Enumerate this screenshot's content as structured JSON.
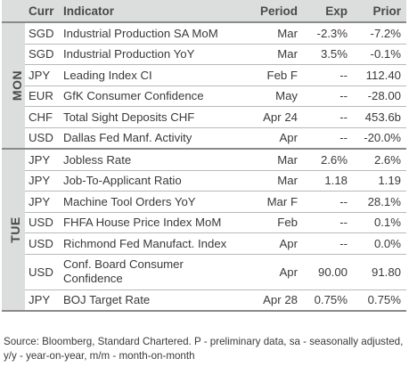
{
  "header": {
    "curr": "Curr",
    "indicator": "Indicator",
    "period": "Period",
    "exp": "Exp",
    "prior": "Prior"
  },
  "groups": [
    {
      "day": "MON",
      "rows": [
        {
          "curr": "SGD",
          "indicator": "Industrial Production SA MoM",
          "period": "Mar",
          "exp": "-2.3%",
          "prior": "-7.2%"
        },
        {
          "curr": "SGD",
          "indicator": "Industrial Production YoY",
          "period": "Mar",
          "exp": "3.5%",
          "prior": "-0.1%"
        },
        {
          "curr": "JPY",
          "indicator": "Leading Index CI",
          "period": "Feb F",
          "exp": "--",
          "prior": "112.40"
        },
        {
          "curr": "EUR",
          "indicator": "GfK Consumer Confidence",
          "period": "May",
          "exp": "--",
          "prior": "-28.00"
        },
        {
          "curr": "CHF",
          "indicator": "Total Sight Deposits CHF",
          "period": "Apr 24",
          "exp": "--",
          "prior": "453.6b"
        },
        {
          "curr": "USD",
          "indicator": "Dallas Fed Manf. Activity",
          "period": "Apr",
          "exp": "--",
          "prior": "-20.0%"
        }
      ]
    },
    {
      "day": "TUE",
      "rows": [
        {
          "curr": "JPY",
          "indicator": "Jobless Rate",
          "period": "Mar",
          "exp": "2.6%",
          "prior": "2.6%"
        },
        {
          "curr": "JPY",
          "indicator": "Job-To-Applicant Ratio",
          "period": "Mar",
          "exp": "1.18",
          "prior": "1.19"
        },
        {
          "curr": "JPY",
          "indicator": "Machine Tool Orders YoY",
          "period": "Mar F",
          "exp": "--",
          "prior": "28.1%"
        },
        {
          "curr": "USD",
          "indicator": "FHFA House Price Index MoM",
          "period": "Feb",
          "exp": "--",
          "prior": "0.1%"
        },
        {
          "curr": "USD",
          "indicator": "Richmond Fed Manufact. Index",
          "period": "Apr",
          "exp": "--",
          "prior": "0.0%"
        },
        {
          "curr": "USD",
          "indicator": "Conf. Board Consumer Confidence",
          "period": "Apr",
          "exp": "90.00",
          "prior": "91.80"
        },
        {
          "curr": "JPY",
          "indicator": "BOJ Target Rate",
          "period": "Apr 28",
          "exp": "0.75%",
          "prior": "0.75%"
        }
      ]
    }
  ],
  "footer": "Source: Bloomberg, Standard Chartered. P - preliminary data, sa - seasonally adjusted, y/y - year-on-year, m/m - month-on-month"
}
